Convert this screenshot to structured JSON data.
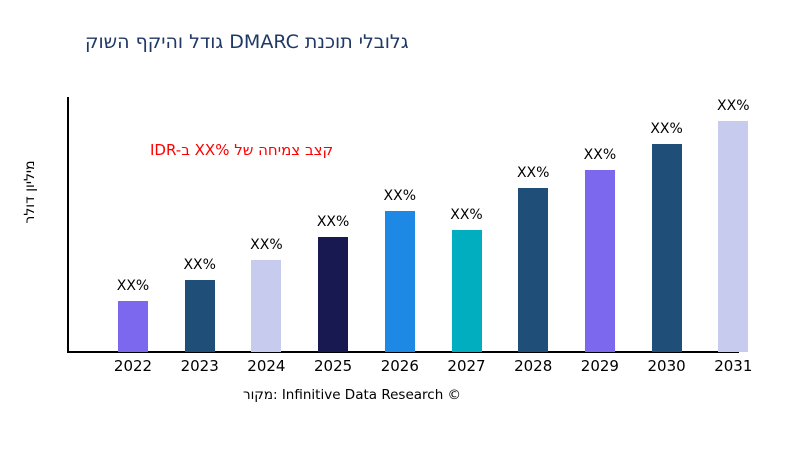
{
  "chart_data": {
    "type": "bar",
    "title": "קושה ףקיהו לדוג DMARC תנכות ילבולג",
    "annotation": "IDR-ב XX% לש החימצ בצק",
    "ylabel": "רלוד ןוילימ",
    "source": "רוקמ: Infinitive Data Research ©",
    "categories": [
      "2022",
      "2023",
      "2024",
      "2025",
      "2026",
      "2027",
      "2028",
      "2029",
      "2030",
      "2031"
    ],
    "values": [
      22,
      31,
      40,
      50,
      61,
      53,
      71,
      79,
      90,
      100
    ],
    "values_note": "y-axis has no tick labels; values are relative units with tallest bar (2031) = 100",
    "bar_labels": [
      "XX%",
      "XX%",
      "XX%",
      "XX%",
      "XX%",
      "XX%",
      "XX%",
      "XX%",
      "XX%",
      "XX%"
    ],
    "colors": [
      "#7b68ee",
      "#1f4e79",
      "#c7ccef",
      "#191952",
      "#1e88e5",
      "#00aec0",
      "#1f4e79",
      "#7b68ee",
      "#1f4e79",
      "#c7ccef"
    ],
    "ylim": [
      0,
      110
    ],
    "grid": false,
    "legend": null,
    "title_color": "#1f3865",
    "annotation_color": "#ff0000"
  }
}
